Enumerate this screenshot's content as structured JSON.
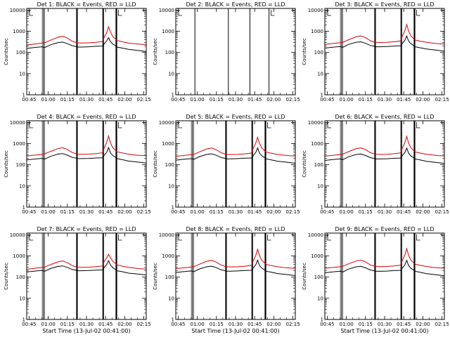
{
  "figure": {
    "background": "#ffffff"
  },
  "colors": {
    "events": "#000000",
    "lld": "#dd0000",
    "axes": "#000000"
  },
  "common": {
    "ylabel": "Counts/sec",
    "xlabel": "Start Time (13-Jul-02 00:41:00)",
    "x_ticks": [
      "00:45",
      "01:00",
      "01:15",
      "01:30",
      "01:45",
      "02:00",
      "02:15"
    ],
    "y_ticks": [
      "1",
      "10",
      "100",
      "1000",
      "10000"
    ],
    "y_scale": "log",
    "ylim": [
      1,
      10000
    ]
  },
  "chart_data": [
    {
      "type": "line",
      "title": "Det 1: BLACK = Events, RED = LLD",
      "ylabel": "Counts/sec",
      "xlabel": "",
      "show_xlabel": false,
      "xlim": [
        0,
        100
      ],
      "ylim": [
        1,
        12000
      ],
      "y_scale": "log",
      "vlines": [
        14,
        42,
        64,
        75
      ],
      "gaps": [
        [
          13,
          15
        ],
        [
          41.5,
          42.5
        ],
        [
          63.5,
          64.5
        ],
        [
          74.5,
          75.5
        ]
      ],
      "x": [
        0,
        4,
        8,
        13,
        15,
        20,
        26,
        30,
        34,
        38,
        41.5,
        42.5,
        46,
        52,
        58,
        63.5,
        64.5,
        67,
        68.5,
        70,
        72,
        74.5,
        75.5,
        80,
        85,
        90,
        95,
        100
      ],
      "series": [
        {
          "name": "Events",
          "values": [
            155,
            165,
            175,
            185,
            170,
            230,
            290,
            310,
            260,
            210,
            190,
            180,
            180,
            185,
            195,
            200,
            240,
            360,
            500,
            330,
            250,
            200,
            180,
            160,
            140,
            130,
            120,
            110
          ]
        },
        {
          "name": "LLD",
          "values": [
            225,
            240,
            255,
            275,
            290,
            380,
            520,
            580,
            480,
            340,
            295,
            285,
            280,
            285,
            300,
            330,
            480,
            900,
            1650,
            950,
            560,
            420,
            370,
            320,
            280,
            260,
            245,
            235
          ]
        }
      ]
    },
    {
      "type": "line",
      "title": "Det 2: BLACK = Events, RED = LLD",
      "ylabel": "Counts/sec",
      "xlabel": "",
      "show_xlabel": false,
      "xlim": [
        0,
        100
      ],
      "ylim": [
        1,
        12000
      ],
      "y_scale": "log",
      "vlines": [
        16,
        44,
        62,
        78
      ],
      "gaps": [],
      "x": [],
      "series": []
    },
    {
      "type": "line",
      "title": "Det 3: BLACK = Events, RED = LLD",
      "ylabel": "Counts/sec",
      "xlabel": "",
      "show_xlabel": false,
      "xlim": [
        0,
        100
      ],
      "ylim": [
        1,
        12000
      ],
      "y_scale": "log",
      "vlines": [
        14,
        42,
        64,
        75
      ],
      "gaps": [
        [
          13,
          15
        ],
        [
          41.5,
          42.5
        ],
        [
          63.5,
          64.5
        ],
        [
          74.5,
          75.5
        ]
      ],
      "x": [
        0,
        4,
        8,
        13,
        15,
        20,
        26,
        30,
        34,
        38,
        41.5,
        42.5,
        46,
        52,
        58,
        63.5,
        64.5,
        67,
        68.5,
        70,
        72,
        74.5,
        75.5,
        80,
        85,
        90,
        95,
        100
      ],
      "series": [
        {
          "name": "Events",
          "values": [
            160,
            170,
            180,
            190,
            175,
            240,
            300,
            320,
            270,
            215,
            195,
            185,
            185,
            190,
            200,
            205,
            250,
            380,
            600,
            350,
            260,
            210,
            185,
            165,
            145,
            135,
            125,
            115
          ]
        },
        {
          "name": "LLD",
          "values": [
            240,
            255,
            270,
            290,
            300,
            400,
            540,
            600,
            500,
            360,
            310,
            300,
            295,
            300,
            320,
            350,
            520,
            1100,
            2100,
            1050,
            600,
            440,
            390,
            340,
            300,
            275,
            260,
            250
          ]
        }
      ]
    },
    {
      "type": "line",
      "title": "Det 4: BLACK = Events, RED = LLD",
      "ylabel": "Counts/sec",
      "xlabel": "",
      "show_xlabel": false,
      "xlim": [
        0,
        100
      ],
      "ylim": [
        1,
        12000
      ],
      "y_scale": "log",
      "vlines": [
        14,
        42,
        64,
        75
      ],
      "gaps": [
        [
          13,
          15
        ],
        [
          41.5,
          42.5
        ],
        [
          63.5,
          64.5
        ],
        [
          74.5,
          75.5
        ]
      ],
      "x": [
        0,
        4,
        8,
        13,
        15,
        20,
        26,
        30,
        34,
        38,
        41.5,
        42.5,
        46,
        52,
        58,
        63.5,
        64.5,
        67,
        68.5,
        70,
        72,
        74.5,
        75.5,
        80,
        85,
        90,
        95,
        100
      ],
      "series": [
        {
          "name": "Events",
          "values": [
            170,
            180,
            190,
            200,
            185,
            250,
            320,
            340,
            285,
            225,
            205,
            195,
            195,
            200,
            210,
            215,
            265,
            400,
            650,
            370,
            275,
            220,
            195,
            175,
            150,
            140,
            130,
            120
          ]
        },
        {
          "name": "LLD",
          "values": [
            260,
            275,
            290,
            310,
            330,
            430,
            580,
            640,
            530,
            380,
            330,
            320,
            315,
            320,
            340,
            370,
            560,
            1200,
            2300,
            1100,
            640,
            470,
            410,
            360,
            320,
            290,
            275,
            265
          ]
        }
      ]
    },
    {
      "type": "line",
      "title": "Det 5: BLACK = Events, RED = LLD",
      "ylabel": "Counts/sec",
      "xlabel": "",
      "show_xlabel": false,
      "xlim": [
        0,
        100
      ],
      "ylim": [
        1,
        12000
      ],
      "y_scale": "log",
      "vlines": [
        14,
        42,
        64,
        75
      ],
      "gaps": [
        [
          13,
          15
        ],
        [
          41.5,
          42.5
        ],
        [
          63.5,
          64.5
        ],
        [
          74.5,
          75.5
        ]
      ],
      "x": [
        0,
        4,
        8,
        13,
        15,
        20,
        26,
        30,
        34,
        38,
        41.5,
        42.5,
        46,
        52,
        58,
        63.5,
        64.5,
        67,
        68.5,
        70,
        72,
        74.5,
        75.5,
        80,
        85,
        90,
        95,
        100
      ],
      "series": [
        {
          "name": "Events",
          "values": [
            165,
            175,
            185,
            195,
            180,
            245,
            310,
            330,
            280,
            220,
            200,
            190,
            190,
            195,
            205,
            210,
            255,
            390,
            620,
            360,
            265,
            215,
            190,
            170,
            148,
            138,
            128,
            118
          ]
        },
        {
          "name": "LLD",
          "values": [
            250,
            265,
            280,
            300,
            310,
            410,
            560,
            620,
            510,
            370,
            320,
            310,
            305,
            310,
            330,
            360,
            540,
            1100,
            2000,
            1050,
            620,
            455,
            400,
            350,
            310,
            285,
            270,
            260
          ]
        }
      ]
    },
    {
      "type": "line",
      "title": "Det 6: BLACK = Events, RED = LLD",
      "ylabel": "Counts/sec",
      "xlabel": "",
      "show_xlabel": false,
      "xlim": [
        0,
        100
      ],
      "ylim": [
        1,
        12000
      ],
      "y_scale": "log",
      "vlines": [
        14,
        42,
        64,
        75
      ],
      "gaps": [
        [
          13,
          15
        ],
        [
          41.5,
          42.5
        ],
        [
          63.5,
          64.5
        ],
        [
          74.5,
          75.5
        ]
      ],
      "x": [
        0,
        4,
        8,
        13,
        15,
        20,
        26,
        30,
        34,
        38,
        41.5,
        42.5,
        46,
        52,
        58,
        63.5,
        64.5,
        67,
        68.5,
        70,
        72,
        74.5,
        75.5,
        80,
        85,
        90,
        95,
        100
      ],
      "series": [
        {
          "name": "Events",
          "values": [
            160,
            170,
            180,
            190,
            175,
            240,
            305,
            325,
            275,
            218,
            198,
            188,
            188,
            193,
            203,
            208,
            252,
            385,
            610,
            355,
            262,
            212,
            188,
            168,
            146,
            136,
            126,
            116
          ]
        },
        {
          "name": "LLD",
          "values": [
            255,
            270,
            285,
            305,
            320,
            420,
            570,
            630,
            520,
            375,
            325,
            315,
            310,
            315,
            335,
            365,
            550,
            1150,
            2200,
            1080,
            630,
            460,
            405,
            355,
            315,
            288,
            272,
            262
          ]
        }
      ]
    },
    {
      "type": "line",
      "title": "Det 7: BLACK = Events, RED = LLD",
      "ylabel": "Counts/sec",
      "xlabel": "Start Time (13-Jul-02 00:41:00)",
      "show_xlabel": true,
      "xlim": [
        0,
        100
      ],
      "ylim": [
        1,
        12000
      ],
      "y_scale": "log",
      "vlines": [
        14,
        42,
        64,
        75
      ],
      "gaps": [
        [
          13,
          15
        ],
        [
          41.5,
          42.5
        ],
        [
          63.5,
          64.5
        ],
        [
          74.5,
          75.5
        ]
      ],
      "x": [
        0,
        4,
        8,
        13,
        15,
        20,
        26,
        30,
        34,
        38,
        41.5,
        42.5,
        46,
        52,
        58,
        63.5,
        64.5,
        67,
        68.5,
        70,
        72,
        74.5,
        75.5,
        80,
        85,
        90,
        95,
        100
      ],
      "series": [
        {
          "name": "Events",
          "values": [
            175,
            185,
            195,
            205,
            190,
            255,
            320,
            340,
            290,
            230,
            210,
            200,
            200,
            205,
            215,
            220,
            270,
            400,
            600,
            380,
            280,
            225,
            200,
            180,
            155,
            145,
            135,
            125
          ]
        },
        {
          "name": "LLD",
          "values": [
            235,
            250,
            265,
            285,
            300,
            390,
            520,
            580,
            480,
            350,
            305,
            295,
            290,
            295,
            315,
            340,
            500,
            850,
            1200,
            850,
            560,
            430,
            380,
            330,
            290,
            265,
            250,
            240
          ]
        }
      ]
    },
    {
      "type": "line",
      "title": "Det 8: BLACK = Events, RED = LLD",
      "ylabel": "Counts/sec",
      "xlabel": "Start Time (13-Jul-02 00:41:00)",
      "show_xlabel": true,
      "xlim": [
        0,
        100
      ],
      "ylim": [
        1,
        12000
      ],
      "y_scale": "log",
      "vlines": [
        14,
        42,
        64,
        75
      ],
      "gaps": [
        [
          13,
          15
        ],
        [
          41.5,
          42.5
        ],
        [
          63.5,
          64.5
        ],
        [
          74.5,
          75.5
        ]
      ],
      "x": [
        0,
        4,
        8,
        13,
        15,
        20,
        26,
        30,
        34,
        38,
        41.5,
        42.5,
        46,
        52,
        58,
        63.5,
        64.5,
        67,
        68.5,
        70,
        72,
        74.5,
        75.5,
        80,
        85,
        90,
        95,
        100
      ],
      "series": [
        {
          "name": "Events",
          "values": [
            165,
            175,
            185,
            195,
            180,
            245,
            310,
            330,
            280,
            220,
            200,
            190,
            190,
            195,
            205,
            210,
            255,
            390,
            630,
            360,
            265,
            215,
            190,
            170,
            148,
            138,
            128,
            118
          ]
        },
        {
          "name": "LLD",
          "values": [
            250,
            265,
            280,
            300,
            310,
            410,
            560,
            620,
            510,
            370,
            320,
            310,
            305,
            310,
            330,
            360,
            540,
            1100,
            2050,
            1050,
            620,
            455,
            400,
            350,
            310,
            285,
            270,
            260
          ]
        }
      ]
    },
    {
      "type": "line",
      "title": "Det 9: BLACK = Events, RED = LLD",
      "ylabel": "Counts/sec",
      "xlabel": "Start Time (13-Jul-02 00:41:00)",
      "show_xlabel": true,
      "xlim": [
        0,
        100
      ],
      "ylim": [
        1,
        12000
      ],
      "y_scale": "log",
      "vlines": [
        14,
        42,
        64,
        75
      ],
      "gaps": [
        [
          13,
          15
        ],
        [
          41.5,
          42.5
        ],
        [
          63.5,
          64.5
        ],
        [
          74.5,
          75.5
        ]
      ],
      "x": [
        0,
        4,
        8,
        13,
        15,
        20,
        26,
        30,
        34,
        38,
        41.5,
        42.5,
        46,
        52,
        58,
        63.5,
        64.5,
        67,
        68.5,
        70,
        72,
        74.5,
        75.5,
        80,
        85,
        90,
        95,
        100
      ],
      "series": [
        {
          "name": "Events",
          "values": [
            160,
            170,
            180,
            190,
            175,
            240,
            305,
            325,
            275,
            218,
            198,
            188,
            188,
            193,
            203,
            208,
            252,
            385,
            620,
            355,
            262,
            212,
            188,
            168,
            146,
            136,
            126,
            116
          ]
        },
        {
          "name": "LLD",
          "values": [
            260,
            275,
            290,
            310,
            325,
            425,
            575,
            635,
            525,
            378,
            328,
            318,
            312,
            318,
            338,
            368,
            555,
            1150,
            2200,
            1080,
            630,
            462,
            408,
            358,
            318,
            290,
            274,
            264
          ]
        }
      ]
    }
  ]
}
